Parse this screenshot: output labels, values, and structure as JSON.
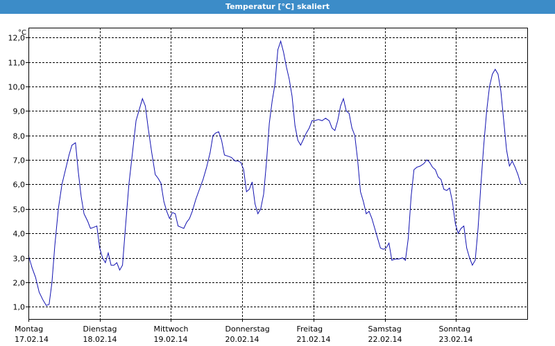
{
  "window": {
    "title": "Temperatur [°C] skaliert"
  },
  "colors": {
    "titlebar": "#3c8cc8",
    "line": "#1010b0",
    "grid": "#000000"
  },
  "chart_data": {
    "type": "line",
    "title": "Temperatur [°C] skaliert",
    "ylabel": "°C",
    "xlabel": "",
    "ylim": [
      0.5,
      12.4
    ],
    "xlim": [
      0,
      7.0
    ],
    "yticks": [
      {
        "v": 1,
        "label": "1,0"
      },
      {
        "v": 2,
        "label": "2,0"
      },
      {
        "v": 3,
        "label": "3,0"
      },
      {
        "v": 4,
        "label": "4,0"
      },
      {
        "v": 5,
        "label": "5,0"
      },
      {
        "v": 6,
        "label": "6,0"
      },
      {
        "v": 7,
        "label": "7,0"
      },
      {
        "v": 8,
        "label": "8,0"
      },
      {
        "v": 9,
        "label": "9,0"
      },
      {
        "v": 10,
        "label": "10,0"
      },
      {
        "v": 11,
        "label": "11,0"
      },
      {
        "v": 12,
        "label": "12,0"
      }
    ],
    "days": [
      {
        "pos": 0,
        "name": "Montag",
        "date": "17.02.14"
      },
      {
        "pos": 1,
        "name": "Dienstag",
        "date": "18.02.14"
      },
      {
        "pos": 2,
        "name": "Mittwoch",
        "date": "19.02.14"
      },
      {
        "pos": 3,
        "name": "Donnerstag",
        "date": "20.02.14"
      },
      {
        "pos": 4,
        "name": "Freitag",
        "date": "21.02.14"
      },
      {
        "pos": 5,
        "name": "Samstag",
        "date": "22.02.14"
      },
      {
        "pos": 6,
        "name": "Sonntag",
        "date": "23.02.14"
      }
    ],
    "grid": true,
    "series": [
      {
        "points": [
          [
            0.0,
            3.1
          ],
          [
            0.05,
            2.6
          ],
          [
            0.1,
            2.2
          ],
          [
            0.15,
            1.6
          ],
          [
            0.2,
            1.3
          ],
          [
            0.25,
            1.05
          ],
          [
            0.29,
            1.1
          ],
          [
            0.33,
            2.0
          ],
          [
            0.37,
            3.5
          ],
          [
            0.42,
            5.0
          ],
          [
            0.47,
            6.0
          ],
          [
            0.52,
            6.6
          ],
          [
            0.57,
            7.2
          ],
          [
            0.61,
            7.6
          ],
          [
            0.66,
            7.7
          ],
          [
            0.7,
            6.5
          ],
          [
            0.74,
            5.5
          ],
          [
            0.78,
            4.8
          ],
          [
            0.83,
            4.5
          ],
          [
            0.87,
            4.2
          ],
          [
            0.92,
            4.25
          ],
          [
            0.96,
            4.3
          ],
          [
            1.0,
            3.4
          ],
          [
            1.04,
            3.0
          ],
          [
            1.08,
            2.8
          ],
          [
            1.12,
            3.2
          ],
          [
            1.16,
            2.7
          ],
          [
            1.2,
            2.7
          ],
          [
            1.24,
            2.8
          ],
          [
            1.28,
            2.5
          ],
          [
            1.32,
            2.7
          ],
          [
            1.36,
            4.2
          ],
          [
            1.41,
            6.0
          ],
          [
            1.46,
            7.3
          ],
          [
            1.51,
            8.6
          ],
          [
            1.56,
            9.1
          ],
          [
            1.6,
            9.5
          ],
          [
            1.64,
            9.2
          ],
          [
            1.68,
            8.3
          ],
          [
            1.73,
            7.3
          ],
          [
            1.78,
            6.4
          ],
          [
            1.82,
            6.25
          ],
          [
            1.86,
            6.05
          ],
          [
            1.9,
            5.3
          ],
          [
            1.94,
            4.9
          ],
          [
            1.98,
            4.6
          ],
          [
            2.02,
            4.85
          ],
          [
            2.06,
            4.8
          ],
          [
            2.1,
            4.3
          ],
          [
            2.14,
            4.25
          ],
          [
            2.18,
            4.2
          ],
          [
            2.22,
            4.45
          ],
          [
            2.26,
            4.6
          ],
          [
            2.3,
            4.9
          ],
          [
            2.35,
            5.4
          ],
          [
            2.4,
            5.8
          ],
          [
            2.45,
            6.2
          ],
          [
            2.5,
            6.7
          ],
          [
            2.55,
            7.3
          ],
          [
            2.59,
            8.0
          ],
          [
            2.63,
            8.1
          ],
          [
            2.67,
            8.15
          ],
          [
            2.71,
            7.8
          ],
          [
            2.75,
            7.2
          ],
          [
            2.8,
            7.15
          ],
          [
            2.85,
            7.1
          ],
          [
            2.9,
            6.95
          ],
          [
            2.94,
            6.95
          ],
          [
            2.98,
            6.9
          ],
          [
            3.02,
            6.6
          ],
          [
            3.06,
            5.7
          ],
          [
            3.1,
            5.8
          ],
          [
            3.14,
            6.1
          ],
          [
            3.18,
            5.2
          ],
          [
            3.22,
            4.8
          ],
          [
            3.26,
            5.0
          ],
          [
            3.3,
            5.6
          ],
          [
            3.34,
            6.9
          ],
          [
            3.38,
            8.5
          ],
          [
            3.42,
            9.4
          ],
          [
            3.46,
            10.1
          ],
          [
            3.5,
            11.5
          ],
          [
            3.54,
            11.85
          ],
          [
            3.58,
            11.4
          ],
          [
            3.62,
            10.8
          ],
          [
            3.66,
            10.3
          ],
          [
            3.7,
            9.6
          ],
          [
            3.74,
            8.4
          ],
          [
            3.78,
            7.8
          ],
          [
            3.82,
            7.6
          ],
          [
            3.86,
            7.85
          ],
          [
            3.9,
            8.1
          ],
          [
            3.94,
            8.3
          ],
          [
            3.98,
            8.6
          ],
          [
            4.02,
            8.6
          ],
          [
            4.07,
            8.65
          ],
          [
            4.12,
            8.6
          ],
          [
            4.17,
            8.7
          ],
          [
            4.22,
            8.6
          ],
          [
            4.26,
            8.3
          ],
          [
            4.3,
            8.2
          ],
          [
            4.34,
            8.6
          ],
          [
            4.38,
            9.2
          ],
          [
            4.42,
            9.5
          ],
          [
            4.46,
            9.0
          ],
          [
            4.5,
            8.9
          ],
          [
            4.54,
            8.3
          ],
          [
            4.58,
            8.0
          ],
          [
            4.62,
            7.0
          ],
          [
            4.66,
            5.7
          ],
          [
            4.7,
            5.3
          ],
          [
            4.74,
            4.8
          ],
          [
            4.78,
            4.9
          ],
          [
            4.82,
            4.6
          ],
          [
            4.86,
            4.2
          ],
          [
            4.9,
            3.8
          ],
          [
            4.94,
            3.4
          ],
          [
            4.98,
            3.35
          ],
          [
            5.02,
            3.4
          ],
          [
            5.06,
            3.6
          ],
          [
            5.1,
            2.9
          ],
          [
            5.15,
            2.95
          ],
          [
            5.2,
            2.95
          ],
          [
            5.25,
            3.0
          ],
          [
            5.29,
            2.9
          ],
          [
            5.33,
            3.8
          ],
          [
            5.37,
            5.5
          ],
          [
            5.41,
            6.6
          ],
          [
            5.45,
            6.7
          ],
          [
            5.5,
            6.75
          ],
          [
            5.55,
            6.85
          ],
          [
            5.59,
            7.0
          ],
          [
            5.63,
            6.9
          ],
          [
            5.67,
            6.7
          ],
          [
            5.71,
            6.6
          ],
          [
            5.75,
            6.3
          ],
          [
            5.79,
            6.2
          ],
          [
            5.83,
            5.8
          ],
          [
            5.87,
            5.75
          ],
          [
            5.91,
            5.85
          ],
          [
            5.95,
            5.3
          ],
          [
            5.99,
            4.4
          ],
          [
            6.03,
            4.0
          ],
          [
            6.07,
            4.2
          ],
          [
            6.11,
            4.3
          ],
          [
            6.15,
            3.4
          ],
          [
            6.19,
            3.0
          ],
          [
            6.23,
            2.7
          ],
          [
            6.27,
            2.9
          ],
          [
            6.31,
            4.2
          ],
          [
            6.35,
            6.0
          ],
          [
            6.39,
            7.6
          ],
          [
            6.43,
            9.0
          ],
          [
            6.47,
            10.0
          ],
          [
            6.51,
            10.5
          ],
          [
            6.55,
            10.7
          ],
          [
            6.59,
            10.5
          ],
          [
            6.63,
            9.8
          ],
          [
            6.67,
            8.6
          ],
          [
            6.71,
            7.4
          ],
          [
            6.75,
            6.75
          ],
          [
            6.79,
            6.95
          ],
          [
            6.83,
            6.7
          ],
          [
            6.87,
            6.4
          ],
          [
            6.91,
            6.0
          ]
        ]
      }
    ]
  }
}
